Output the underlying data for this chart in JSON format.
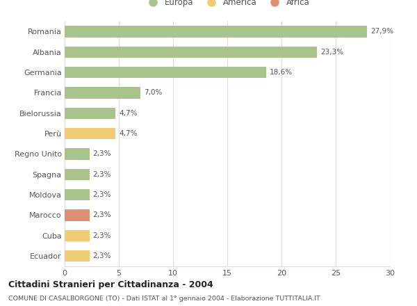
{
  "categories": [
    "Romania",
    "Albania",
    "Germania",
    "Francia",
    "Bielorussia",
    "Perù",
    "Regno Unito",
    "Spagna",
    "Moldova",
    "Marocco",
    "Cuba",
    "Ecuador"
  ],
  "values": [
    27.9,
    23.3,
    18.6,
    7.0,
    4.7,
    4.7,
    2.3,
    2.3,
    2.3,
    2.3,
    2.3,
    2.3
  ],
  "labels": [
    "27,9%",
    "23,3%",
    "18,6%",
    "7,0%",
    "4,7%",
    "4,7%",
    "2,3%",
    "2,3%",
    "2,3%",
    "2,3%",
    "2,3%",
    "2,3%"
  ],
  "colors": [
    "#a8c48a",
    "#a8c48a",
    "#a8c48a",
    "#a8c48a",
    "#a8c48a",
    "#f0cc72",
    "#a8c48a",
    "#a8c48a",
    "#a8c48a",
    "#e09070",
    "#f0cc72",
    "#f0cc72"
  ],
  "legend_items": [
    {
      "label": "Europa",
      "color": "#a8c48a"
    },
    {
      "label": "America",
      "color": "#f0cc72"
    },
    {
      "label": "Africa",
      "color": "#e09070"
    }
  ],
  "xlim": [
    0,
    30
  ],
  "xticks": [
    0,
    5,
    10,
    15,
    20,
    25,
    30
  ],
  "title": "Cittadini Stranieri per Cittadinanza - 2004",
  "subtitle": "COMUNE DI CASALBORGONE (TO) - Dati ISTAT al 1° gennaio 2004 - Elaborazione TUTTITALIA.IT",
  "background_color": "#ffffff",
  "grid_color": "#dddddd"
}
